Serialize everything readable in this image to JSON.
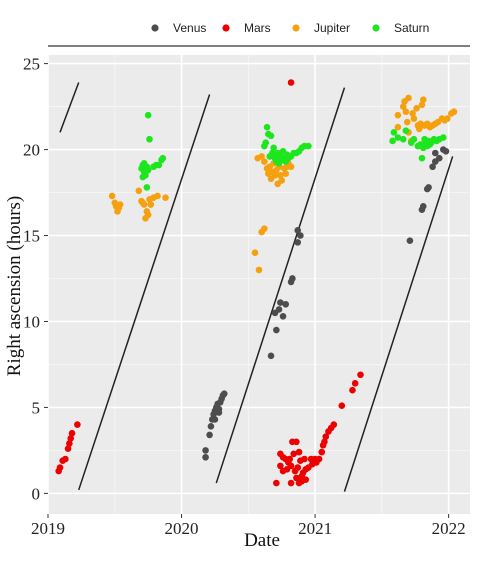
{
  "chart_data": {
    "type": "scatter",
    "xlabel": "Date",
    "ylabel": "Right ascension (hours)",
    "xlim": [
      2019.0,
      2022.16
    ],
    "ylim": [
      -1.2,
      25.5
    ],
    "x_ticks": [
      {
        "value": 2019,
        "label": "2019"
      },
      {
        "value": 2020,
        "label": "2020"
      },
      {
        "value": 2021,
        "label": "2021"
      },
      {
        "value": 2022,
        "label": "2022"
      }
    ],
    "y_ticks": [
      {
        "value": 0,
        "label": "0"
      },
      {
        "value": 5,
        "label": "5"
      },
      {
        "value": 10,
        "label": "10"
      },
      {
        "value": 15,
        "label": "15"
      },
      {
        "value": 20,
        "label": "20"
      },
      {
        "value": 25,
        "label": "25"
      }
    ],
    "grid": true,
    "legend_position": "top",
    "reference_lines": [
      [
        [
          2019.09,
          21.0
        ],
        [
          2019.23,
          23.9
        ]
      ],
      [
        [
          2019.23,
          0.2
        ],
        [
          2020.21,
          23.2
        ]
      ],
      [
        [
          2020.26,
          0.6
        ],
        [
          2021.22,
          23.6
        ]
      ],
      [
        [
          2021.22,
          0.1
        ],
        [
          2022.03,
          19.6
        ]
      ]
    ],
    "series": [
      {
        "name": "Venus",
        "color": "#4d4d4d",
        "points": [
          [
            2020.18,
            2.1
          ],
          [
            2020.18,
            2.5
          ],
          [
            2020.21,
            3.4
          ],
          [
            2020.22,
            3.9
          ],
          [
            2020.23,
            4.3
          ],
          [
            2020.24,
            4.6
          ],
          [
            2020.25,
            4.8
          ],
          [
            2020.26,
            5.0
          ],
          [
            2020.27,
            5.2
          ],
          [
            2020.28,
            4.9
          ],
          [
            2020.29,
            5.3
          ],
          [
            2020.3,
            5.5
          ],
          [
            2020.31,
            5.7
          ],
          [
            2020.32,
            5.8
          ],
          [
            2020.25,
            4.3
          ],
          [
            2020.28,
            4.7
          ],
          [
            2020.67,
            8.0
          ],
          [
            2020.71,
            9.5
          ],
          [
            2020.7,
            10.5
          ],
          [
            2020.73,
            10.7
          ],
          [
            2020.74,
            11.1
          ],
          [
            2020.76,
            10.3
          ],
          [
            2020.78,
            11.0
          ],
          [
            2020.82,
            12.3
          ],
          [
            2020.83,
            12.5
          ],
          [
            2020.87,
            14.6
          ],
          [
            2020.87,
            15.3
          ],
          [
            2020.89,
            15.0
          ],
          [
            2021.71,
            14.7
          ],
          [
            2021.8,
            16.5
          ],
          [
            2021.81,
            16.7
          ],
          [
            2021.84,
            17.7
          ],
          [
            2021.85,
            17.8
          ],
          [
            2021.88,
            19.0
          ],
          [
            2021.9,
            19.3
          ],
          [
            2021.9,
            19.8
          ],
          [
            2021.93,
            19.5
          ],
          [
            2021.96,
            20.0
          ],
          [
            2021.98,
            19.9
          ]
        ]
      },
      {
        "name": "Mars",
        "color": "#ee0000",
        "points": [
          [
            2019.08,
            1.3
          ],
          [
            2019.09,
            1.5
          ],
          [
            2019.11,
            1.9
          ],
          [
            2019.13,
            2.0
          ],
          [
            2019.15,
            2.6
          ],
          [
            2019.16,
            2.9
          ],
          [
            2019.17,
            3.2
          ],
          [
            2019.18,
            3.5
          ],
          [
            2019.22,
            4.0
          ],
          [
            2020.82,
            23.9
          ],
          [
            2020.71,
            0.6
          ],
          [
            2020.74,
            1.6
          ],
          [
            2020.74,
            2.3
          ],
          [
            2020.76,
            2.1
          ],
          [
            2020.76,
            1.3
          ],
          [
            2020.78,
            2.0
          ],
          [
            2020.79,
            1.4
          ],
          [
            2020.8,
            1.8
          ],
          [
            2020.81,
            2.0
          ],
          [
            2020.82,
            0.6
          ],
          [
            2020.82,
            1.6
          ],
          [
            2020.83,
            3.0
          ],
          [
            2020.84,
            2.3
          ],
          [
            2020.85,
            1.3
          ],
          [
            2020.86,
            0.9
          ],
          [
            2020.86,
            3.0
          ],
          [
            2020.87,
            1.5
          ],
          [
            2020.88,
            2.4
          ],
          [
            2020.88,
            0.6
          ],
          [
            2020.89,
            1.9
          ],
          [
            2020.9,
            1.0
          ],
          [
            2020.9,
            0.7
          ],
          [
            2020.91,
            1.2
          ],
          [
            2020.92,
            2.0
          ],
          [
            2020.93,
            1.4
          ],
          [
            2020.93,
            0.8
          ],
          [
            2020.95,
            1.5
          ],
          [
            2020.97,
            2.0
          ],
          [
            2020.98,
            1.7
          ],
          [
            2021.0,
            2.0
          ],
          [
            2021.01,
            1.8
          ],
          [
            2021.03,
            2.0
          ],
          [
            2021.05,
            2.4
          ],
          [
            2021.06,
            2.8
          ],
          [
            2021.07,
            3.0
          ],
          [
            2021.08,
            3.3
          ],
          [
            2021.1,
            3.6
          ],
          [
            2021.12,
            3.8
          ],
          [
            2021.14,
            4.0
          ],
          [
            2021.2,
            5.1
          ],
          [
            2021.28,
            6.0
          ],
          [
            2021.3,
            6.4
          ],
          [
            2021.34,
            6.9
          ]
        ]
      },
      {
        "name": "Jupiter",
        "color": "#f5a00e",
        "points": [
          [
            2019.48,
            17.3
          ],
          [
            2019.5,
            16.9
          ],
          [
            2019.51,
            16.7
          ],
          [
            2019.52,
            16.4
          ],
          [
            2019.53,
            16.6
          ],
          [
            2019.54,
            16.8
          ],
          [
            2019.68,
            17.6
          ],
          [
            2019.7,
            17.0
          ],
          [
            2019.71,
            16.9
          ],
          [
            2019.72,
            16.8
          ],
          [
            2019.73,
            16.0
          ],
          [
            2019.74,
            16.4
          ],
          [
            2019.75,
            16.2
          ],
          [
            2019.76,
            17.1
          ],
          [
            2019.77,
            16.8
          ],
          [
            2019.79,
            17.2
          ],
          [
            2019.82,
            17.3
          ],
          [
            2019.88,
            17.2
          ],
          [
            2020.55,
            14.0
          ],
          [
            2020.58,
            13.0
          ],
          [
            2020.6,
            15.2
          ],
          [
            2020.62,
            15.4
          ],
          [
            2020.57,
            19.5
          ],
          [
            2020.6,
            19.6
          ],
          [
            2020.62,
            19.3
          ],
          [
            2020.64,
            18.9
          ],
          [
            2020.65,
            18.6
          ],
          [
            2020.66,
            19.0
          ],
          [
            2020.67,
            18.3
          ],
          [
            2020.68,
            18.7
          ],
          [
            2020.69,
            19.2
          ],
          [
            2020.7,
            18.5
          ],
          [
            2020.71,
            18.8
          ],
          [
            2020.72,
            18.0
          ],
          [
            2020.73,
            19.0
          ],
          [
            2020.74,
            18.5
          ],
          [
            2020.75,
            18.2
          ],
          [
            2020.76,
            19.4
          ],
          [
            2020.77,
            18.9
          ],
          [
            2020.78,
            18.6
          ],
          [
            2020.79,
            19.0
          ],
          [
            2020.8,
            19.2
          ],
          [
            2020.82,
            19.0
          ],
          [
            2021.62,
            22.0
          ],
          [
            2021.62,
            21.3
          ],
          [
            2021.66,
            22.5
          ],
          [
            2021.67,
            22.8
          ],
          [
            2021.68,
            22.2
          ],
          [
            2021.69,
            21.6
          ],
          [
            2021.7,
            21.0
          ],
          [
            2021.7,
            23.0
          ],
          [
            2021.72,
            20.5
          ],
          [
            2021.73,
            22.1
          ],
          [
            2021.74,
            21.8
          ],
          [
            2021.76,
            22.4
          ],
          [
            2021.77,
            21.4
          ],
          [
            2021.78,
            21.2
          ],
          [
            2021.79,
            21.5
          ],
          [
            2021.8,
            22.6
          ],
          [
            2021.81,
            22.9
          ],
          [
            2021.82,
            21.4
          ],
          [
            2021.84,
            21.5
          ],
          [
            2021.86,
            21.3
          ],
          [
            2021.88,
            21.4
          ],
          [
            2021.9,
            21.5
          ],
          [
            2021.92,
            21.6
          ],
          [
            2021.95,
            21.8
          ],
          [
            2021.97,
            21.7
          ],
          [
            2021.99,
            21.8
          ],
          [
            2022.02,
            22.1
          ],
          [
            2022.04,
            22.2
          ]
        ]
      },
      {
        "name": "Saturn",
        "color": "#1ee61e",
        "points": [
          [
            2019.7,
            18.9
          ],
          [
            2019.71,
            18.4
          ],
          [
            2019.71,
            19.1
          ],
          [
            2019.72,
            18.7
          ],
          [
            2019.72,
            19.2
          ],
          [
            2019.73,
            18.5
          ],
          [
            2019.74,
            17.8
          ],
          [
            2019.74,
            19.0
          ],
          [
            2019.75,
            18.8
          ],
          [
            2019.75,
            22.0
          ],
          [
            2019.76,
            20.6
          ],
          [
            2019.79,
            19.0
          ],
          [
            2019.81,
            19.1
          ],
          [
            2019.83,
            19.1
          ],
          [
            2019.85,
            19.4
          ],
          [
            2019.86,
            19.5
          ],
          [
            2020.62,
            20.2
          ],
          [
            2020.63,
            20.4
          ],
          [
            2020.64,
            21.3
          ],
          [
            2020.65,
            20.9
          ],
          [
            2020.66,
            19.6
          ],
          [
            2020.67,
            20.8
          ],
          [
            2020.68,
            19.8
          ],
          [
            2020.69,
            20.1
          ],
          [
            2020.7,
            19.5
          ],
          [
            2020.71,
            19.3
          ],
          [
            2020.72,
            19.8
          ],
          [
            2020.73,
            19.2
          ],
          [
            2020.74,
            19.6
          ],
          [
            2020.75,
            19.4
          ],
          [
            2020.76,
            19.9
          ],
          [
            2020.77,
            19.5
          ],
          [
            2020.78,
            19.3
          ],
          [
            2020.79,
            19.7
          ],
          [
            2020.8,
            19.5
          ],
          [
            2020.82,
            19.6
          ],
          [
            2020.84,
            19.8
          ],
          [
            2020.86,
            19.8
          ],
          [
            2020.88,
            19.9
          ],
          [
            2020.9,
            20.1
          ],
          [
            2020.92,
            20.2
          ],
          [
            2020.95,
            20.2
          ],
          [
            2021.58,
            20.5
          ],
          [
            2021.59,
            21.0
          ],
          [
            2021.62,
            20.7
          ],
          [
            2021.66,
            20.6
          ],
          [
            2021.68,
            21.1
          ],
          [
            2021.72,
            20.4
          ],
          [
            2021.74,
            20.6
          ],
          [
            2021.77,
            20.2
          ],
          [
            2021.79,
            20.3
          ],
          [
            2021.8,
            19.5
          ],
          [
            2021.81,
            20.1
          ],
          [
            2021.82,
            20.6
          ],
          [
            2021.83,
            20.4
          ],
          [
            2021.84,
            20.2
          ],
          [
            2021.85,
            20.5
          ],
          [
            2021.86,
            20.3
          ],
          [
            2021.87,
            20.4
          ],
          [
            2021.89,
            20.6
          ],
          [
            2021.91,
            20.5
          ],
          [
            2021.93,
            20.6
          ],
          [
            2021.96,
            20.7
          ]
        ]
      }
    ]
  }
}
